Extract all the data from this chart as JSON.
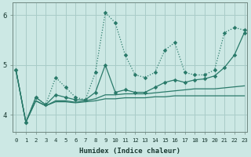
{
  "x": [
    0,
    1,
    2,
    3,
    4,
    5,
    6,
    7,
    8,
    9,
    10,
    11,
    12,
    13,
    14,
    15,
    16,
    17,
    18,
    19,
    20,
    21,
    22,
    23
  ],
  "line1_dotted_high": [
    4.9,
    3.85,
    4.35,
    4.2,
    4.75,
    4.55,
    4.35,
    4.3,
    4.85,
    6.05,
    5.85,
    5.2,
    4.8,
    4.75,
    4.85,
    5.3,
    5.45,
    4.85,
    4.8,
    4.8,
    4.9,
    5.65,
    5.75,
    5.7
  ],
  "line2_solid_high": [
    4.9,
    3.85,
    4.35,
    4.2,
    4.4,
    4.35,
    4.3,
    4.3,
    4.45,
    5.0,
    4.45,
    4.5,
    4.45,
    4.45,
    4.55,
    4.65,
    4.7,
    4.65,
    4.7,
    4.72,
    4.78,
    4.95,
    5.2,
    5.65
  ],
  "line3_solid_low": [
    4.9,
    3.85,
    4.28,
    4.18,
    4.28,
    4.28,
    4.25,
    4.28,
    4.32,
    4.4,
    4.4,
    4.42,
    4.42,
    4.42,
    4.44,
    4.46,
    4.48,
    4.5,
    4.52,
    4.52,
    4.52,
    4.54,
    4.56,
    4.58
  ],
  "line4_solid_flat": [
    4.9,
    3.85,
    4.28,
    4.18,
    4.26,
    4.26,
    4.24,
    4.26,
    4.28,
    4.32,
    4.32,
    4.34,
    4.34,
    4.34,
    4.36,
    4.36,
    4.38,
    4.38,
    4.38,
    4.38,
    4.38,
    4.38,
    4.38,
    4.38
  ],
  "line_color": "#2a7a6a",
  "bg_color": "#cce8e4",
  "grid_color": "#a8ccc8",
  "xlabel": "Humidex (Indice chaleur)",
  "yticks": [
    4,
    5,
    6
  ],
  "xticks": [
    0,
    1,
    2,
    3,
    4,
    5,
    6,
    7,
    8,
    9,
    10,
    11,
    12,
    13,
    14,
    15,
    16,
    17,
    18,
    19,
    20,
    21,
    22,
    23
  ],
  "xlim": [
    -0.3,
    23.3
  ],
  "ylim": [
    3.65,
    6.25
  ]
}
